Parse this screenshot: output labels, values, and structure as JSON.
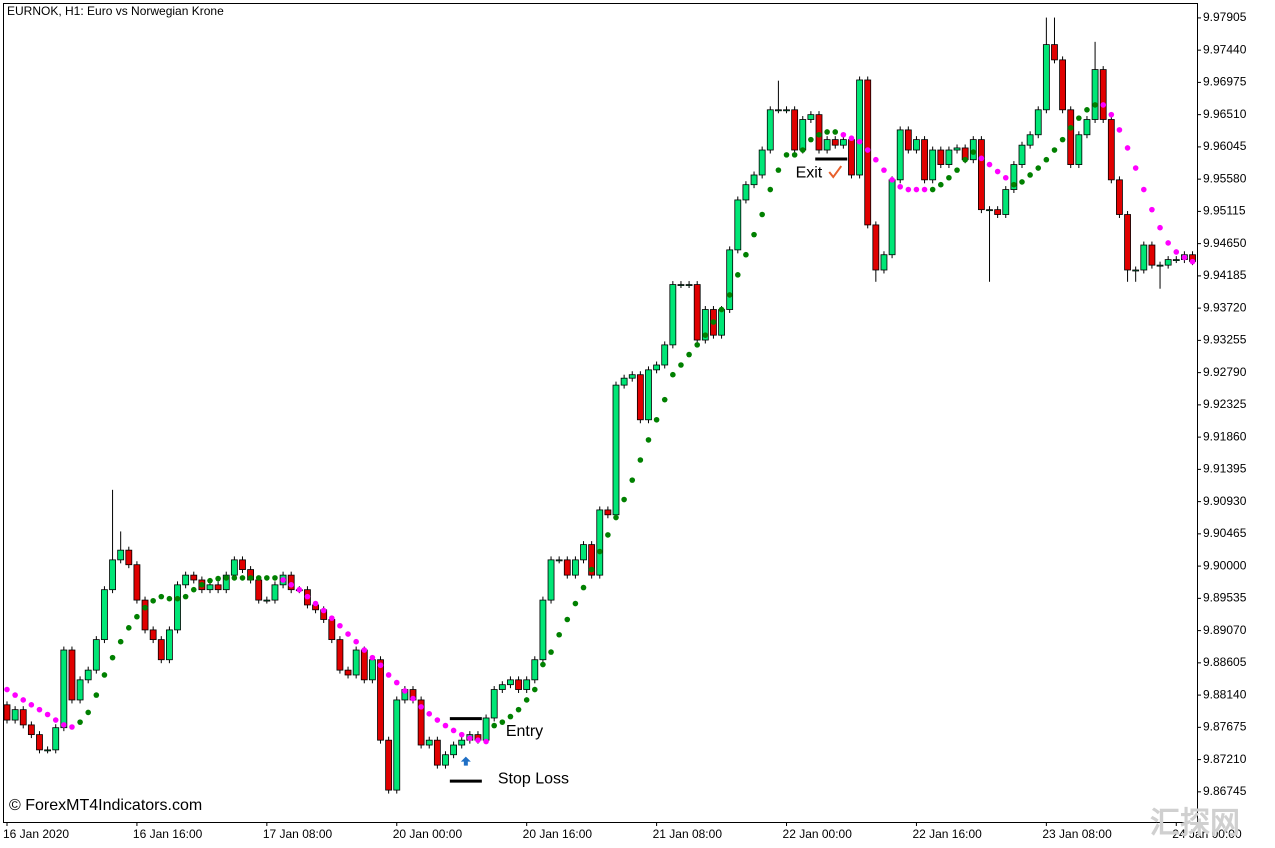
{
  "chart_data": {
    "type": "candlestick",
    "title": "EURNOK, H1:  Euro vs Norwegian Krone",
    "watermark": "© ForexMT4Indicators.com",
    "watermark2": "汇探网",
    "up_color": "#00e676",
    "down_color": "#e00000",
    "categories": [
      "16 Jan 2020",
      null,
      null,
      null,
      null,
      null,
      null,
      null,
      null,
      null,
      null,
      null,
      null,
      null,
      null,
      null,
      "16 Jan 16:00",
      null,
      null,
      null,
      null,
      null,
      null,
      null,
      null,
      null,
      null,
      null,
      null,
      null,
      null,
      null,
      "17 Jan 08:00",
      null,
      null,
      null,
      null,
      null,
      null,
      null,
      null,
      null,
      null,
      null,
      null,
      null,
      null,
      null,
      "20 Jan 00:00",
      null,
      null,
      null,
      null,
      null,
      null,
      null,
      null,
      null,
      null,
      null,
      null,
      null,
      null,
      null,
      "20 Jan 16:00",
      null,
      null,
      null,
      null,
      null,
      null,
      null,
      null,
      null,
      null,
      null,
      null,
      null,
      null,
      null,
      "21 Jan 08:00",
      null,
      null,
      null,
      null,
      null,
      null,
      null,
      null,
      null,
      null,
      null,
      null,
      null,
      null,
      null,
      "22 Jan 00:00",
      null,
      null,
      null,
      null,
      null,
      null,
      null,
      null,
      null,
      null,
      null,
      null,
      null,
      null,
      null,
      "22 Jan 16:00",
      null,
      null,
      null,
      null,
      null,
      null,
      null,
      null,
      null,
      null,
      null,
      null,
      null,
      null,
      null,
      "23 Jan 08:00",
      null,
      null,
      null,
      null,
      null,
      null,
      null,
      null,
      null,
      null,
      null,
      null,
      null,
      null,
      null,
      "24 Jan 00:00",
      null,
      null
    ],
    "open": [
      9.88,
      9.8778,
      9.8793,
      9.8771,
      9.8757,
      9.8735,
      9.8735,
      9.8767,
      9.8879,
      9.8807,
      9.8836,
      9.885,
      9.8894,
      9.8966,
      9.9009,
      9.9023,
      9.9002,
      9.8951,
      9.8908,
      9.8894,
      9.8865,
      9.8908,
      9.8973,
      9.8987,
      9.898,
      9.8966,
      9.8973,
      9.8966,
      9.8987,
      9.9009,
      9.8995,
      9.898,
      9.8951,
      9.8951,
      9.8973,
      9.8987,
      9.8966,
      9.8966,
      9.8944,
      9.8937,
      9.8923,
      9.8894,
      9.885,
      9.8843,
      9.8879,
      9.8836,
      9.8865,
      9.8749,
      9.8677,
      9.8807,
      9.8822,
      9.8807,
      9.8742,
      9.8749,
      9.8713,
      9.8728,
      9.8742,
      9.8749,
      9.8757,
      9.8749,
      9.8781,
      9.8822,
      9.8829,
      9.8836,
      9.8822,
      9.8836,
      9.8865,
      9.8951,
      9.9009,
      9.9009,
      9.8987,
      9.9009,
      9.9031,
      9.8987,
      9.9081,
      9.9074,
      9.9261,
      9.9271,
      9.9276,
      9.9211,
      9.9283,
      9.929,
      9.9319,
      9.9406,
      9.9406,
      9.9406,
      9.9326,
      9.937,
      9.9333,
      9.937,
      9.9456,
      9.9528,
      9.955,
      9.9564,
      9.96,
      9.9658,
      9.9658,
      9.9658,
      9.96,
      9.9644,
      9.9651,
      9.96,
      9.9615,
      9.9607,
      9.9615,
      9.9564,
      9.9701,
      9.9492,
      9.9427,
      9.9449,
      9.9557,
      9.9629,
      9.96,
      9.9615,
      9.9557,
      9.96,
      9.9579,
      9.96,
      9.9603,
      9.9586,
      9.9615,
      9.9514,
      9.9514,
      9.9507,
      9.9543,
      9.9579,
      9.9607,
      9.9622,
      9.9658,
      9.9752,
      9.973,
      9.9658,
      9.9579,
      9.9622,
      9.9644,
      9.9716,
      9.9644,
      9.9557,
      9.9507,
      9.9427,
      9.9427,
      9.9463,
      9.9434,
      9.9434,
      9.9442,
      9.9442,
      9.9449
    ],
    "high": [
      9.8805,
      9.8798,
      9.8798,
      9.8776,
      9.8762,
      9.874,
      9.8772,
      9.8884,
      9.8884,
      9.8841,
      9.8855,
      9.8899,
      9.8971,
      9.911,
      9.905,
      9.9028,
      9.9007,
      9.8956,
      9.8913,
      9.8899,
      9.8913,
      9.8978,
      9.8992,
      9.8992,
      9.8985,
      9.8978,
      9.8978,
      9.8992,
      9.9014,
      9.9014,
      9.9,
      9.8985,
      9.8956,
      9.8978,
      9.8992,
      9.8992,
      9.8971,
      9.8971,
      9.8949,
      9.8942,
      9.8928,
      9.8899,
      9.8855,
      9.8884,
      9.8884,
      9.887,
      9.887,
      9.8754,
      9.8812,
      9.8827,
      9.8827,
      9.8812,
      9.8754,
      9.8754,
      9.8733,
      9.8747,
      9.8754,
      9.8762,
      9.8762,
      9.8786,
      9.8827,
      9.8834,
      9.8841,
      9.8841,
      9.8841,
      9.887,
      9.8956,
      9.9014,
      9.9014,
      9.9014,
      9.9014,
      9.9036,
      9.9036,
      9.9086,
      9.9086,
      9.9266,
      9.9276,
      9.9281,
      9.9281,
      9.9288,
      9.9295,
      9.9324,
      9.9411,
      9.9411,
      9.9411,
      9.9411,
      9.9375,
      9.9375,
      9.9375,
      9.9461,
      9.9533,
      9.9555,
      9.9569,
      9.9605,
      9.9663,
      9.97,
      9.9663,
      9.9663,
      9.9649,
      9.9656,
      9.9656,
      9.962,
      9.962,
      9.962,
      9.962,
      9.9706,
      9.9706,
      9.9497,
      9.9454,
      9.9562,
      9.9634,
      9.9634,
      9.962,
      9.962,
      9.9605,
      9.9605,
      9.9605,
      9.9608,
      9.9608,
      9.962,
      9.962,
      9.9519,
      9.9519,
      9.9548,
      9.9584,
      9.9612,
      9.9627,
      9.9663,
      9.9791,
      9.9791,
      9.9735,
      9.9663,
      9.9627,
      9.9649,
      9.9756,
      9.9721,
      9.9649,
      9.9562,
      9.9512,
      9.9432,
      9.9468,
      9.9468,
      9.9439,
      9.9447,
      9.9447,
      9.9454,
      9.9454
    ],
    "low": [
      9.8773,
      9.8773,
      9.8766,
      9.8752,
      9.873,
      9.873,
      9.873,
      9.8762,
      9.8802,
      9.8802,
      9.8831,
      9.8845,
      9.8889,
      9.8961,
      9.9004,
      9.8997,
      9.8946,
      9.8903,
      9.8889,
      9.886,
      9.886,
      9.8903,
      9.8968,
      9.8975,
      9.8961,
      9.8961,
      9.8961,
      9.8961,
      9.8982,
      9.899,
      9.8975,
      9.8946,
      9.8946,
      9.8946,
      9.8968,
      9.8961,
      9.8961,
      9.8939,
      9.8932,
      9.8918,
      9.8889,
      9.8845,
      9.8838,
      9.8838,
      9.8831,
      9.8831,
      9.8744,
      9.8672,
      9.8672,
      9.8802,
      9.8802,
      9.8737,
      9.8737,
      9.8708,
      9.8708,
      9.8723,
      9.8737,
      9.8744,
      9.8744,
      9.8744,
      9.8776,
      9.8817,
      9.8824,
      9.8817,
      9.8817,
      9.8831,
      9.886,
      9.8946,
      9.9004,
      9.8982,
      9.8982,
      9.9004,
      9.8982,
      9.8982,
      9.9069,
      9.9069,
      9.9256,
      9.9266,
      9.9206,
      9.9206,
      9.9278,
      9.9285,
      9.9314,
      9.9401,
      9.9401,
      9.9321,
      9.9321,
      9.9328,
      9.9328,
      9.9365,
      9.9451,
      9.9523,
      9.9545,
      9.9559,
      9.9595,
      9.9653,
      9.9653,
      9.9595,
      9.9595,
      9.9639,
      9.9595,
      9.9595,
      9.9602,
      9.9602,
      9.9559,
      9.9559,
      9.9487,
      9.941,
      9.9422,
      9.9444,
      9.9552,
      9.9595,
      9.9595,
      9.9552,
      9.9552,
      9.9574,
      9.9574,
      9.9595,
      9.9581,
      9.9581,
      9.9509,
      9.941,
      9.9502,
      9.9502,
      9.9538,
      9.9574,
      9.9602,
      9.9617,
      9.9653,
      9.9725,
      9.9653,
      9.9574,
      9.9574,
      9.9617,
      9.9639,
      9.9639,
      9.9552,
      9.9502,
      9.941,
      9.941,
      9.9422,
      9.9429,
      9.94,
      9.9429,
      9.9437,
      9.9437,
      9.9434
    ],
    "close": [
      9.8778,
      9.8793,
      9.8771,
      9.8757,
      9.8735,
      9.8735,
      9.8767,
      9.8879,
      9.8807,
      9.8836,
      9.885,
      9.8894,
      9.8966,
      9.9009,
      9.9023,
      9.9002,
      9.8951,
      9.8908,
      9.8894,
      9.8865,
      9.8908,
      9.8973,
      9.8987,
      9.898,
      9.8966,
      9.8973,
      9.8966,
      9.8987,
      9.9009,
      9.8995,
      9.898,
      9.8951,
      9.8951,
      9.8973,
      9.8987,
      9.8966,
      9.8966,
      9.8944,
      9.8937,
      9.8923,
      9.8894,
      9.885,
      9.8843,
      9.8879,
      9.8836,
      9.8865,
      9.8749,
      9.8677,
      9.8807,
      9.8822,
      9.8807,
      9.8742,
      9.8749,
      9.8713,
      9.8728,
      9.8742,
      9.8749,
      9.8757,
      9.8749,
      9.8781,
      9.8822,
      9.8829,
      9.8836,
      9.8822,
      9.8836,
      9.8865,
      9.8951,
      9.9009,
      9.9009,
      9.8987,
      9.9009,
      9.9031,
      9.8987,
      9.9081,
      9.9074,
      9.9261,
      9.9271,
      9.9276,
      9.9211,
      9.9283,
      9.929,
      9.9319,
      9.9406,
      9.9406,
      9.9406,
      9.9326,
      9.937,
      9.9333,
      9.937,
      9.9456,
      9.9528,
      9.955,
      9.9564,
      9.96,
      9.9658,
      9.9658,
      9.9658,
      9.96,
      9.9644,
      9.9651,
      9.96,
      9.9615,
      9.9607,
      9.9615,
      9.9564,
      9.9701,
      9.9492,
      9.9427,
      9.9449,
      9.9557,
      9.9629,
      9.96,
      9.9615,
      9.9557,
      9.96,
      9.9579,
      9.96,
      9.9603,
      9.9586,
      9.9615,
      9.9514,
      9.9514,
      9.9507,
      9.9543,
      9.9579,
      9.9607,
      9.9622,
      9.9658,
      9.9752,
      9.973,
      9.9658,
      9.9579,
      9.9622,
      9.9644,
      9.9716,
      9.9644,
      9.9557,
      9.9507,
      9.9427,
      9.9427,
      9.9463,
      9.9434,
      9.9434,
      9.9442,
      9.9442,
      9.9449,
      9.9439
    ],
    "series": [
      {
        "color": "#ff00ff",
        "values": [
          9.8822,
          9.8814,
          9.8807,
          9.88,
          9.8793,
          9.8786,
          9.8778,
          9.8771,
          9.8768,
          null,
          null,
          null,
          null,
          null,
          null,
          null,
          null,
          null,
          null,
          null,
          null,
          null,
          null,
          null,
          null,
          null,
          null,
          null,
          null,
          null,
          null,
          null,
          null,
          null,
          9.898,
          9.8973,
          9.8966,
          9.8956,
          9.8946,
          9.8936,
          9.8925,
          9.8914,
          9.8902,
          9.8891,
          9.8879,
          9.8868,
          9.8857,
          9.8843,
          9.8832,
          9.882,
          9.8809,
          9.8797,
          9.8787,
          9.8778,
          9.877,
          9.8763,
          9.8757,
          9.8752,
          9.8749,
          9.8747,
          null,
          null,
          null,
          null,
          null,
          null,
          null,
          null,
          null,
          null,
          null,
          null,
          null,
          null,
          null,
          null,
          null,
          null,
          null,
          null,
          null,
          null,
          null,
          null,
          null,
          null,
          null,
          null,
          null,
          null,
          null,
          null,
          null,
          null,
          null,
          null,
          null,
          null,
          null,
          null,
          null,
          null,
          null,
          9.9622,
          9.9617,
          9.9612,
          9.96,
          9.9586,
          9.9571,
          9.9557,
          9.9547,
          9.9543,
          9.9543,
          9.9543,
          null,
          null,
          null,
          null,
          null,
          null,
          9.9588,
          9.9579,
          9.9569,
          9.956,
          null,
          null,
          null,
          null,
          null,
          null,
          null,
          null,
          null,
          null,
          null,
          9.9665,
          9.9651,
          9.9629,
          9.9603,
          9.9574,
          9.9543,
          9.9514,
          9.9488,
          9.9466,
          9.9453,
          9.9445,
          9.9439
        ]
      },
      {
        "color": "#008000",
        "values": [
          null,
          null,
          null,
          null,
          null,
          null,
          null,
          null,
          null,
          9.8775,
          9.8789,
          9.8814,
          9.8843,
          9.8868,
          9.8891,
          9.8911,
          9.8927,
          9.894,
          9.895,
          9.8956,
          9.8953,
          9.8953,
          9.8956,
          9.8966,
          9.8973,
          9.8979,
          9.8982,
          9.8983,
          9.8983,
          9.8983,
          9.8983,
          9.8983,
          9.8983,
          9.8983,
          null,
          null,
          null,
          null,
          null,
          null,
          null,
          null,
          null,
          null,
          null,
          null,
          null,
          null,
          null,
          null,
          null,
          null,
          null,
          null,
          null,
          null,
          null,
          null,
          null,
          null,
          9.877,
          9.8775,
          9.8783,
          9.8793,
          9.8807,
          9.8822,
          9.8858,
          9.8876,
          9.8901,
          9.8923,
          9.8946,
          9.8969,
          9.8995,
          9.9021,
          9.9045,
          9.907,
          9.9096,
          9.9124,
          9.9153,
          9.9182,
          9.9211,
          9.924,
          9.9276,
          9.929,
          9.9305,
          9.9319,
          9.9333,
          9.9352,
          9.937,
          9.9391,
          9.942,
          9.9449,
          9.9478,
          9.9507,
          9.9543,
          9.9571,
          9.9593,
          9.9593,
          9.96,
          9.9615,
          9.9622,
          9.9626,
          9.9626,
          null,
          null,
          null,
          null,
          null,
          null,
          null,
          null,
          null,
          null,
          null,
          9.9543,
          9.955,
          9.956,
          9.9571,
          9.9586,
          9.9597,
          null,
          null,
          null,
          null,
          9.955,
          9.9554,
          9.9564,
          9.9574,
          9.9586,
          9.96,
          9.9615,
          9.9632,
          9.9646,
          9.9658,
          9.9665,
          null,
          null,
          null,
          null,
          null,
          null,
          null,
          null,
          null,
          null,
          null,
          null
        ]
      }
    ],
    "annotations": [
      {
        "text": "Entry",
        "x": 57,
        "value": 9.878
      },
      {
        "text": "Stop Loss",
        "x": 57,
        "value": 9.869
      },
      {
        "text": "Exit",
        "x": 102,
        "value": 9.9587
      }
    ],
    "arrow": {
      "x": 57,
      "value": 9.8718
    },
    "ylim": [
      9.8631,
      9.9812
    ],
    "yticks": [
      {
        "value": 9.97905,
        "label": "9.97905"
      },
      {
        "value": 9.9744,
        "label": "9.97440"
      },
      {
        "value": 9.96975,
        "label": "9.96975"
      },
      {
        "value": 9.9651,
        "label": "9.96510"
      },
      {
        "value": 9.96045,
        "label": "9.96045"
      },
      {
        "value": 9.9558,
        "label": "9.95580"
      },
      {
        "value": 9.95115,
        "label": "9.95115"
      },
      {
        "value": 9.9465,
        "label": "9.94650"
      },
      {
        "value": 9.94185,
        "label": "9.94185"
      },
      {
        "value": 9.9372,
        "label": "9.93720"
      },
      {
        "value": 9.93255,
        "label": "9.93255"
      },
      {
        "value": 9.9279,
        "label": "9.92790"
      },
      {
        "value": 9.92325,
        "label": "9.92325"
      },
      {
        "value": 9.9186,
        "label": "9.91860"
      },
      {
        "value": 9.91395,
        "label": "9.91395"
      },
      {
        "value": 9.9093,
        "label": "9.90930"
      },
      {
        "value": 9.90465,
        "label": "9.90465"
      },
      {
        "value": 9.9,
        "label": "9.90000"
      },
      {
        "value": 9.89535,
        "label": "9.89535"
      },
      {
        "value": 9.8907,
        "label": "9.89070"
      },
      {
        "value": 9.88605,
        "label": "9.88605"
      },
      {
        "value": 9.8814,
        "label": "9.88140"
      },
      {
        "value": 9.87675,
        "label": "9.87675"
      },
      {
        "value": 9.8721,
        "label": "9.87210"
      },
      {
        "value": 9.86745,
        "label": "9.86745"
      }
    ],
    "grid": false
  }
}
